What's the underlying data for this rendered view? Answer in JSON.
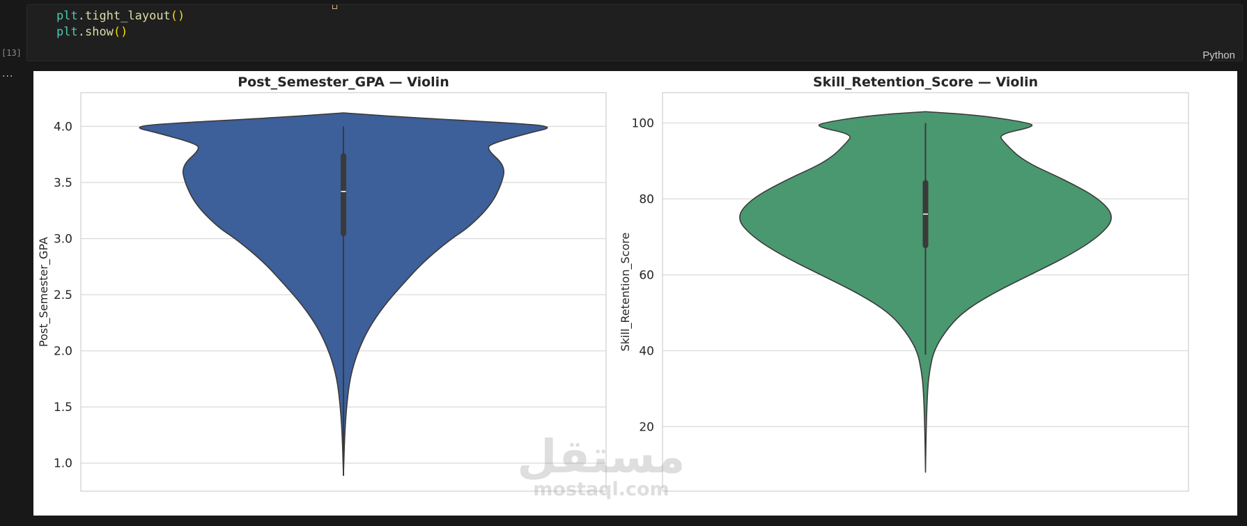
{
  "cell": {
    "code_lines": [
      {
        "var": "plt",
        "fn": "tight_layout",
        "args": "()"
      },
      {
        "var": "plt",
        "fn": "show",
        "args": "()"
      }
    ],
    "execution_count": "[13]",
    "language": "Python",
    "output_ellipsis": "..."
  },
  "chart_data": [
    {
      "type": "violin",
      "title": "Post_Semester_GPA — Violin",
      "xlabel": "",
      "ylabel": "Post_Semester_GPA",
      "ylim": [
        0.75,
        4.3
      ],
      "yticks": [
        1.0,
        1.5,
        2.0,
        2.5,
        3.0,
        3.5,
        4.0
      ],
      "ytick_labels": [
        "1.0",
        "1.5",
        "2.0",
        "2.5",
        "3.0",
        "3.5",
        "4.0"
      ],
      "grid": "horizontal",
      "color": "#3d5f9a",
      "data_range": [
        0.89,
        4.12
      ],
      "whisker_range": [
        0.89,
        4.0
      ],
      "quartiles": [
        3.02,
        3.76
      ],
      "median": 3.42,
      "density_profile": [
        {
          "y": 0.89,
          "half_width": 0
        },
        {
          "y": 1.3,
          "half_width": 2
        },
        {
          "y": 1.6,
          "half_width": 6
        },
        {
          "y": 1.8,
          "half_width": 11
        },
        {
          "y": 2.0,
          "half_width": 21
        },
        {
          "y": 2.2,
          "half_width": 36
        },
        {
          "y": 2.4,
          "half_width": 58
        },
        {
          "y": 2.6,
          "half_width": 86
        },
        {
          "y": 2.8,
          "half_width": 116
        },
        {
          "y": 3.0,
          "half_width": 155
        },
        {
          "y": 3.1,
          "half_width": 180
        },
        {
          "y": 3.3,
          "half_width": 212
        },
        {
          "y": 3.5,
          "half_width": 228
        },
        {
          "y": 3.65,
          "half_width": 232
        },
        {
          "y": 3.8,
          "half_width": 205
        },
        {
          "y": 3.85,
          "half_width": 214
        },
        {
          "y": 3.95,
          "half_width": 272
        },
        {
          "y": 3.99,
          "half_width": 300
        },
        {
          "y": 4.02,
          "half_width": 270
        },
        {
          "y": 4.08,
          "half_width": 90
        },
        {
          "y": 4.12,
          "half_width": 0
        }
      ]
    },
    {
      "type": "violin",
      "title": "Skill_Retention_Score — Violin",
      "xlabel": "",
      "ylabel": "Skill_Retention_Score",
      "ylim": [
        3,
        108
      ],
      "yticks": [
        20,
        40,
        60,
        80,
        100
      ],
      "ytick_labels": [
        "20",
        "40",
        "60",
        "80",
        "100"
      ],
      "grid": "horizontal",
      "color": "#4a9870",
      "data_range": [
        8,
        103
      ],
      "whisker_range": [
        39,
        100
      ],
      "quartiles": [
        67,
        85
      ],
      "median": 76,
      "density_profile": [
        {
          "y": 8,
          "half_width": 0
        },
        {
          "y": 20,
          "half_width": 1
        },
        {
          "y": 30,
          "half_width": 3
        },
        {
          "y": 35,
          "half_width": 6
        },
        {
          "y": 40,
          "half_width": 12
        },
        {
          "y": 45,
          "half_width": 28
        },
        {
          "y": 50,
          "half_width": 52
        },
        {
          "y": 55,
          "half_width": 95
        },
        {
          "y": 60,
          "half_width": 150
        },
        {
          "y": 65,
          "half_width": 205
        },
        {
          "y": 70,
          "half_width": 248
        },
        {
          "y": 75,
          "half_width": 272
        },
        {
          "y": 80,
          "half_width": 250
        },
        {
          "y": 85,
          "half_width": 200
        },
        {
          "y": 90,
          "half_width": 140
        },
        {
          "y": 95,
          "half_width": 112
        },
        {
          "y": 97,
          "half_width": 105
        },
        {
          "y": 99,
          "half_width": 155
        },
        {
          "y": 100,
          "half_width": 150
        },
        {
          "y": 102,
          "half_width": 80
        },
        {
          "y": 103,
          "half_width": 0
        }
      ]
    }
  ],
  "watermark": {
    "arabic": "مستقل",
    "latin": "mostaql.com"
  }
}
